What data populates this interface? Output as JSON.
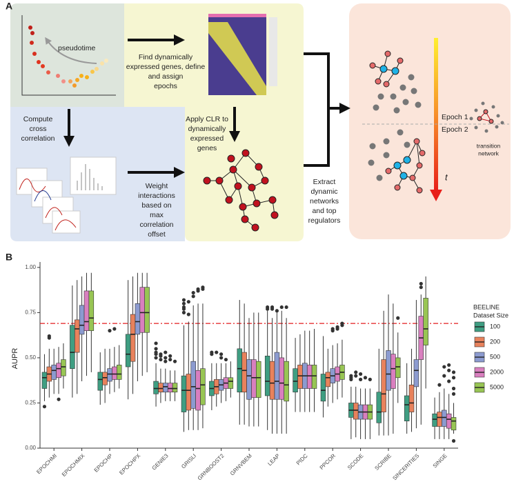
{
  "panel_labels": [
    "A",
    "B"
  ],
  "panel_a": {
    "pseudotime": "pseudotime",
    "find_genes": [
      "Find dynamically",
      "expressed genes, define",
      "and assign",
      "epochs"
    ],
    "cross_correlation": [
      "Compute",
      "cross",
      "correlation"
    ],
    "apply_clr": [
      "Apply CLR to",
      "dynamically",
      "expressed",
      "genes"
    ],
    "weight": [
      "Weight",
      "interactions",
      "based on",
      "max",
      "correlation",
      "offset"
    ],
    "extract": [
      "Extract",
      "dynamic",
      "networks",
      "and top",
      "regulators"
    ],
    "epoch_1": "Epoch 1",
    "epoch_2": "Epoch 2",
    "transition_network": [
      "transition",
      "network"
    ],
    "time_label": "t"
  },
  "chart_data": {
    "type": "boxplot",
    "y_label": "AUPR",
    "categories": [
      "EPOCHMI",
      "EPOCHMIX",
      "EPOCHP",
      "EPOCHPX",
      "GENIE3",
      "GRISLI",
      "GRNBOOST2",
      "GRNVBEM",
      "LEAP",
      "PIDC",
      "PPCOR",
      "SCODE",
      "SCRIBE",
      "SINCERITIES",
      "SINGE"
    ],
    "ylim": [
      0,
      1.03
    ],
    "yticks": [
      {
        "value": 0,
        "label": "0.00"
      },
      {
        "value": 0.25,
        "label": "0.25"
      },
      {
        "value": 0.5,
        "label": "0.50"
      },
      {
        "value": 0.75,
        "label": "0.75"
      },
      {
        "value": 1,
        "label": "1.00"
      }
    ],
    "reference_line": {
      "value": 0.69,
      "color": "#e31a1c"
    },
    "legend_title": [
      "BEELINE",
      "Dataset Size"
    ],
    "legend_position": "right",
    "series": [
      {
        "name": "100",
        "color": "#3f9e82",
        "q1": [
          0.33,
          0.44,
          0.32,
          0.45,
          0.3,
          0.2,
          0.29,
          0.31,
          0.29,
          0.31,
          0.26,
          0.17,
          0.14,
          0.15,
          0.12
        ],
        "median": [
          0.39,
          0.53,
          0.38,
          0.52,
          0.33,
          0.32,
          0.33,
          0.44,
          0.37,
          0.37,
          0.32,
          0.21,
          0.2,
          0.24,
          0.16
        ],
        "q3": [
          0.42,
          0.68,
          0.42,
          0.63,
          0.37,
          0.4,
          0.37,
          0.55,
          0.51,
          0.44,
          0.41,
          0.25,
          0.31,
          0.29,
          0.19
        ],
        "whisker_low": [
          0.26,
          0.28,
          0.24,
          0.27,
          0.23,
          0.09,
          0.21,
          0.13,
          0.1,
          0.2,
          0.17,
          0.05,
          0.07,
          0.08,
          0.05
        ],
        "whisker_high": [
          0.52,
          0.9,
          0.53,
          0.93,
          0.47,
          0.68,
          0.47,
          0.82,
          0.76,
          0.61,
          0.62,
          0.34,
          0.55,
          0.47,
          0.28
        ],
        "outliers": [
          [
            0.23
          ],
          [],
          [],
          [],
          [
            0.58,
            0.55,
            0.53,
            0.52,
            0.5
          ],
          [
            0.82,
            0.8,
            0.78,
            0.77,
            0.75
          ],
          [
            0.52,
            0.53
          ],
          [],
          [
            0.78,
            0.77
          ],
          [],
          [],
          [
            0.4,
            0.39,
            0.38
          ],
          [],
          [],
          []
        ]
      },
      {
        "name": "200",
        "color": "#e8825c",
        "q1": [
          0.37,
          0.53,
          0.35,
          0.48,
          0.31,
          0.21,
          0.3,
          0.31,
          0.27,
          0.33,
          0.34,
          0.16,
          0.2,
          0.2,
          0.12
        ],
        "median": [
          0.41,
          0.66,
          0.39,
          0.63,
          0.33,
          0.32,
          0.34,
          0.43,
          0.36,
          0.4,
          0.39,
          0.21,
          0.3,
          0.25,
          0.17
        ],
        "q3": [
          0.45,
          0.71,
          0.42,
          0.74,
          0.36,
          0.41,
          0.38,
          0.53,
          0.48,
          0.46,
          0.42,
          0.25,
          0.49,
          0.35,
          0.2
        ],
        "whisker_low": [
          0.28,
          0.3,
          0.25,
          0.3,
          0.25,
          0.1,
          0.23,
          0.13,
          0.08,
          0.2,
          0.23,
          0.06,
          0.07,
          0.09,
          0.05
        ],
        "whisker_high": [
          0.55,
          0.93,
          0.55,
          0.95,
          0.44,
          0.7,
          0.47,
          0.8,
          0.72,
          0.63,
          0.55,
          0.34,
          0.76,
          0.55,
          0.31
        ],
        "outliers": [
          [
            0.62,
            0.61
          ],
          [],
          [],
          [],
          [
            0.52,
            0.51,
            0.49
          ],
          [
            0.81,
            0.74
          ],
          [
            0.53
          ],
          [],
          [
            0.78,
            0.77
          ],
          [],
          [],
          [
            0.42,
            0.4
          ],
          [],
          [],
          [
            0.35
          ]
        ]
      },
      {
        "name": "500",
        "color": "#8c9bd0",
        "q1": [
          0.38,
          0.63,
          0.37,
          0.63,
          0.31,
          0.22,
          0.32,
          0.27,
          0.27,
          0.33,
          0.36,
          0.16,
          0.32,
          0.34,
          0.12
        ],
        "median": [
          0.43,
          0.68,
          0.41,
          0.7,
          0.34,
          0.34,
          0.35,
          0.4,
          0.37,
          0.4,
          0.4,
          0.2,
          0.41,
          0.43,
          0.17
        ],
        "q3": [
          0.46,
          0.79,
          0.44,
          0.8,
          0.36,
          0.48,
          0.38,
          0.49,
          0.53,
          0.47,
          0.44,
          0.24,
          0.54,
          0.49,
          0.21
        ],
        "whisker_low": [
          0.3,
          0.37,
          0.3,
          0.37,
          0.26,
          0.1,
          0.25,
          0.12,
          0.08,
          0.2,
          0.25,
          0.05,
          0.07,
          0.11,
          0.05
        ],
        "whisker_high": [
          0.55,
          0.95,
          0.55,
          0.97,
          0.44,
          0.79,
          0.47,
          0.72,
          0.75,
          0.65,
          0.57,
          0.33,
          0.85,
          0.82,
          0.33
        ],
        "outliers": [
          [],
          [],
          [
            0.65
          ],
          [],
          [
            0.53,
            0.5,
            0.48
          ],
          [
            0.86,
            0.84
          ],
          [
            0.52,
            0.5
          ],
          [],
          [
            0.76
          ],
          [],
          [
            0.65,
            0.66
          ],
          [
            0.41,
            0.38
          ],
          [],
          [],
          [
            0.4,
            0.45
          ]
        ]
      },
      {
        "name": "2000",
        "color": "#d97fbf",
        "q1": [
          0.39,
          0.65,
          0.38,
          0.64,
          0.31,
          0.21,
          0.33,
          0.28,
          0.27,
          0.33,
          0.37,
          0.16,
          0.33,
          0.49,
          0.11
        ],
        "median": [
          0.44,
          0.7,
          0.41,
          0.75,
          0.33,
          0.33,
          0.36,
          0.39,
          0.36,
          0.4,
          0.41,
          0.2,
          0.44,
          0.61,
          0.16
        ],
        "q3": [
          0.47,
          0.87,
          0.45,
          0.89,
          0.36,
          0.43,
          0.39,
          0.49,
          0.5,
          0.46,
          0.45,
          0.24,
          0.52,
          0.73,
          0.19
        ],
        "whisker_low": [
          0.3,
          0.4,
          0.31,
          0.4,
          0.26,
          0.1,
          0.26,
          0.12,
          0.08,
          0.2,
          0.27,
          0.05,
          0.08,
          0.13,
          0.05
        ],
        "whisker_high": [
          0.56,
          0.97,
          0.56,
          0.97,
          0.43,
          0.8,
          0.47,
          0.75,
          0.76,
          0.65,
          0.58,
          0.33,
          0.8,
          0.85,
          0.3
        ],
        "outliers": [
          [
            0.27
          ],
          [],
          [
            0.66
          ],
          [],
          [
            0.51,
            0.49
          ],
          [
            0.88,
            0.87
          ],
          [
            0.49
          ],
          [],
          [
            0.78
          ],
          [],
          [
            0.66,
            0.67
          ],
          [
            0.39
          ],
          [],
          [
            0.89,
            0.91
          ],
          [
            0.37,
            0.43,
            0.46
          ]
        ]
      },
      {
        "name": "5000",
        "color": "#98c554",
        "q1": [
          0.4,
          0.65,
          0.38,
          0.64,
          0.31,
          0.24,
          0.33,
          0.28,
          0.26,
          0.33,
          0.38,
          0.16,
          0.39,
          0.57,
          0.1
        ],
        "median": [
          0.45,
          0.72,
          0.41,
          0.75,
          0.33,
          0.35,
          0.37,
          0.39,
          0.35,
          0.4,
          0.42,
          0.2,
          0.45,
          0.66,
          0.15
        ],
        "q3": [
          0.49,
          0.87,
          0.46,
          0.89,
          0.36,
          0.44,
          0.39,
          0.48,
          0.48,
          0.46,
          0.46,
          0.24,
          0.5,
          0.83,
          0.17
        ],
        "whisker_low": [
          0.33,
          0.42,
          0.33,
          0.42,
          0.26,
          0.11,
          0.28,
          0.12,
          0.08,
          0.2,
          0.28,
          0.05,
          0.25,
          0.33,
          0.08
        ],
        "whisker_high": [
          0.58,
          0.97,
          0.57,
          0.97,
          0.43,
          0.8,
          0.48,
          0.75,
          0.72,
          0.66,
          0.6,
          0.33,
          0.64,
          0.95,
          0.25
        ],
        "outliers": [
          [],
          [],
          [],
          [],
          [
            0.48
          ],
          [
            0.89,
            0.88
          ],
          [],
          [],
          [
            0.78
          ],
          [],
          [
            0.68,
            0.69
          ],
          [
            0.38
          ],
          [
            0.72
          ],
          [],
          [
            0.04,
            0.3,
            0.33,
            0.39,
            0.42
          ]
        ]
      }
    ]
  }
}
